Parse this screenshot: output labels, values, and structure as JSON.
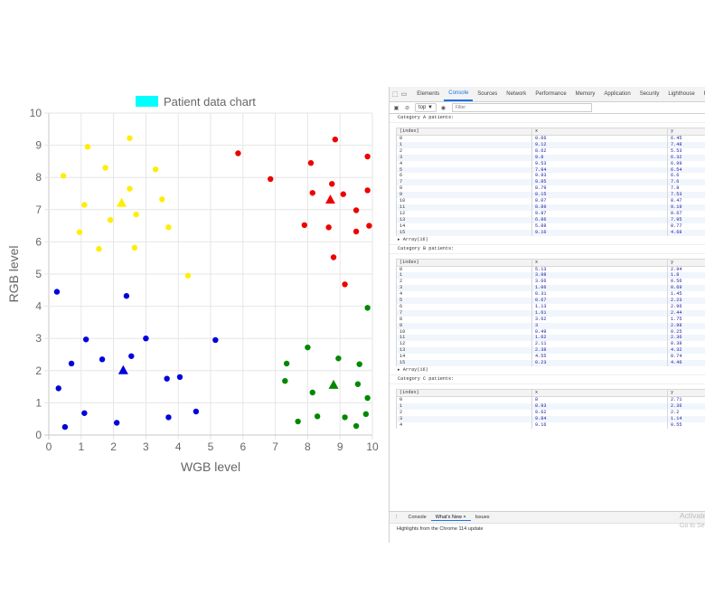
{
  "chart_data": {
    "type": "scatter",
    "title": "",
    "legend": {
      "label": "Patient data chart",
      "color": "#00ffff",
      "position": "top"
    },
    "xlabel": "WGB level",
    "ylabel": "RGB level",
    "xlim": [
      0,
      10
    ],
    "ylim": [
      0,
      10
    ],
    "xticks": [
      "0",
      "1",
      "2",
      "3",
      "4",
      "5",
      "6",
      "7",
      "8",
      "9",
      "10"
    ],
    "yticks": [
      "0",
      "1",
      "2",
      "3",
      "4",
      "5",
      "6",
      "7",
      "8",
      "9",
      "10"
    ],
    "grid": true,
    "series": [
      {
        "color": "#ffee00",
        "points": [
          [
            0.45,
            8.05
          ],
          [
            1.2,
            8.95
          ],
          [
            1.75,
            8.3
          ],
          [
            2.5,
            9.22
          ],
          [
            3.3,
            8.25
          ],
          [
            1.1,
            7.15
          ],
          [
            2.5,
            7.65
          ],
          [
            3.5,
            7.32
          ],
          [
            0.95,
            6.3
          ],
          [
            1.9,
            6.68
          ],
          [
            2.7,
            6.85
          ],
          [
            3.7,
            6.45
          ],
          [
            1.55,
            5.78
          ],
          [
            2.65,
            5.82
          ],
          [
            4.3,
            4.95
          ]
        ],
        "centroid": [
          2.25,
          7.2
        ]
      },
      {
        "color": "#ee0000",
        "points": [
          [
            5.85,
            8.75
          ],
          [
            6.85,
            7.95
          ],
          [
            8.1,
            8.45
          ],
          [
            8.85,
            9.18
          ],
          [
            9.85,
            8.65
          ],
          [
            8.15,
            7.52
          ],
          [
            8.75,
            7.8
          ],
          [
            9.1,
            7.48
          ],
          [
            9.85,
            7.6
          ],
          [
            9.5,
            6.98
          ],
          [
            7.9,
            6.52
          ],
          [
            8.65,
            6.45
          ],
          [
            9.5,
            6.32
          ],
          [
            9.9,
            6.5
          ],
          [
            8.8,
            5.52
          ],
          [
            9.15,
            4.68
          ]
        ],
        "centroid": [
          8.7,
          7.3
        ]
      },
      {
        "color": "#0000dd",
        "points": [
          [
            0.25,
            4.45
          ],
          [
            2.4,
            4.32
          ],
          [
            1.15,
            2.97
          ],
          [
            3.0,
            3.0
          ],
          [
            5.15,
            2.95
          ],
          [
            0.7,
            2.22
          ],
          [
            1.65,
            2.35
          ],
          [
            2.55,
            2.45
          ],
          [
            3.65,
            1.75
          ],
          [
            4.05,
            1.8
          ],
          [
            0.3,
            1.45
          ],
          [
            1.1,
            0.68
          ],
          [
            3.7,
            0.55
          ],
          [
            4.55,
            0.73
          ],
          [
            0.5,
            0.25
          ],
          [
            2.1,
            0.38
          ]
        ],
        "centroid": [
          2.3,
          2.0
        ]
      },
      {
        "color": "#008800",
        "points": [
          [
            9.85,
            3.95
          ],
          [
            8.0,
            2.72
          ],
          [
            7.35,
            2.22
          ],
          [
            8.95,
            2.38
          ],
          [
            9.6,
            2.2
          ],
          [
            7.3,
            1.68
          ],
          [
            8.15,
            1.32
          ],
          [
            9.55,
            1.58
          ],
          [
            9.85,
            1.15
          ],
          [
            8.3,
            0.58
          ],
          [
            9.15,
            0.55
          ],
          [
            9.8,
            0.65
          ],
          [
            7.7,
            0.42
          ],
          [
            9.5,
            0.28
          ]
        ],
        "centroid": [
          8.8,
          1.55
        ]
      }
    ]
  },
  "devtools": {
    "tabs": [
      "Elements",
      "Console",
      "Sources",
      "Network",
      "Performance",
      "Memory",
      "Application",
      "Security",
      "Lighthouse",
      "Recorder"
    ],
    "active_tab": "Console",
    "context": "top ▼",
    "filter_placeholder": "Filter",
    "console": [
      {
        "kind": "text",
        "text": "Category A patients:"
      },
      {
        "kind": "table",
        "headers": [
          "(index)",
          "x",
          "y"
        ],
        "rows": [
          [
            "0",
            "0.66",
            "6.45"
          ],
          [
            "1",
            "9.12",
            "7.48"
          ],
          [
            "2",
            "8.62",
            "5.53"
          ],
          [
            "3",
            "9.8",
            "6.32"
          ],
          [
            "4",
            "9.53",
            "6.99"
          ],
          [
            "5",
            "7.84",
            "6.54"
          ],
          [
            "6",
            "9.93",
            "6.6"
          ],
          [
            "7",
            "9.85",
            "7.6"
          ],
          [
            "8",
            "8.79",
            "7.8"
          ],
          [
            "9",
            "8.15",
            "7.53"
          ],
          [
            "10",
            "8.07",
            "8.47"
          ],
          [
            "11",
            "8.89",
            "9.19"
          ],
          [
            "12",
            "9.87",
            "8.67"
          ],
          [
            "13",
            "6.86",
            "7.95"
          ],
          [
            "14",
            "5.88",
            "8.77"
          ],
          [
            "15",
            "9.16",
            "4.68"
          ]
        ]
      },
      {
        "kind": "array",
        "text": "▸ Array(16)"
      },
      {
        "kind": "text",
        "text": "Category B patients:"
      },
      {
        "kind": "table",
        "headers": [
          "(index)",
          "x",
          "y"
        ],
        "rows": [
          [
            "0",
            "5.13",
            "2.94"
          ],
          [
            "1",
            "3.98",
            "1.8"
          ],
          [
            "2",
            "3.66",
            "0.56"
          ],
          [
            "3",
            "1.06",
            "0.69"
          ],
          [
            "4",
            "0.31",
            "1.45"
          ],
          [
            "5",
            "0.67",
            "2.23"
          ],
          [
            "6",
            "1.13",
            "2.96"
          ],
          [
            "7",
            "1.61",
            "2.44"
          ],
          [
            "8",
            "3.62",
            "1.75"
          ],
          [
            "9",
            "3",
            "2.98"
          ],
          [
            "10",
            "0.49",
            "0.25"
          ],
          [
            "11",
            "1.62",
            "2.36"
          ],
          [
            "12",
            "2.11",
            "0.38"
          ],
          [
            "13",
            "2.38",
            "4.32"
          ],
          [
            "14",
            "4.55",
            "0.74"
          ],
          [
            "15",
            "0.23",
            "4.46"
          ]
        ]
      },
      {
        "kind": "array",
        "text": "▸ Array(16)"
      },
      {
        "kind": "text",
        "text": "Category C patients:"
      },
      {
        "kind": "table",
        "headers": [
          "(index)",
          "x",
          "y"
        ],
        "rows": [
          [
            "0",
            "8",
            "2.71"
          ],
          [
            "1",
            "8.93",
            "2.36"
          ],
          [
            "2",
            "9.62",
            "2.2"
          ],
          [
            "3",
            "9.84",
            "1.14"
          ],
          [
            "4",
            "9.16",
            "0.55"
          ]
        ]
      }
    ],
    "drawer_tabs": [
      "Console",
      "What's New",
      "Issues"
    ],
    "drawer_active": "What's New",
    "drawer_message": "Highlights from the Chrome 114 update",
    "watermark_line1": "Activate",
    "watermark_line2": "Go to Setti"
  }
}
